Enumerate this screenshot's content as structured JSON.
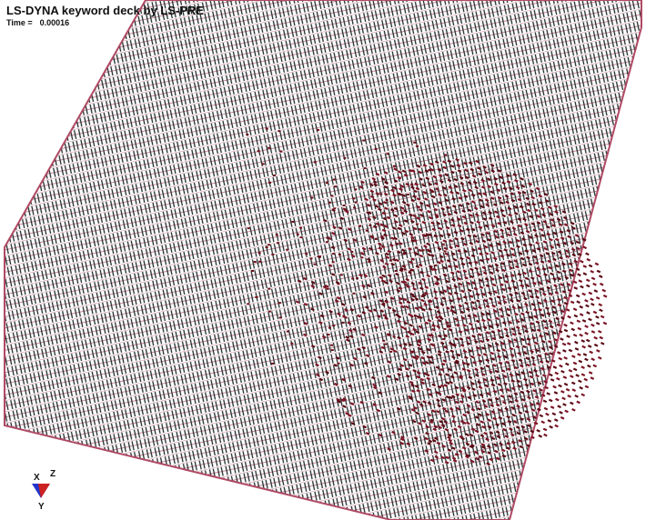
{
  "header": {
    "title": "LS-DYNA keyword deck by LS-PRE",
    "time_label": "Time =",
    "time_value": 0.00016
  },
  "triad": {
    "x": "X",
    "y": "Y",
    "z": "Z"
  }
}
